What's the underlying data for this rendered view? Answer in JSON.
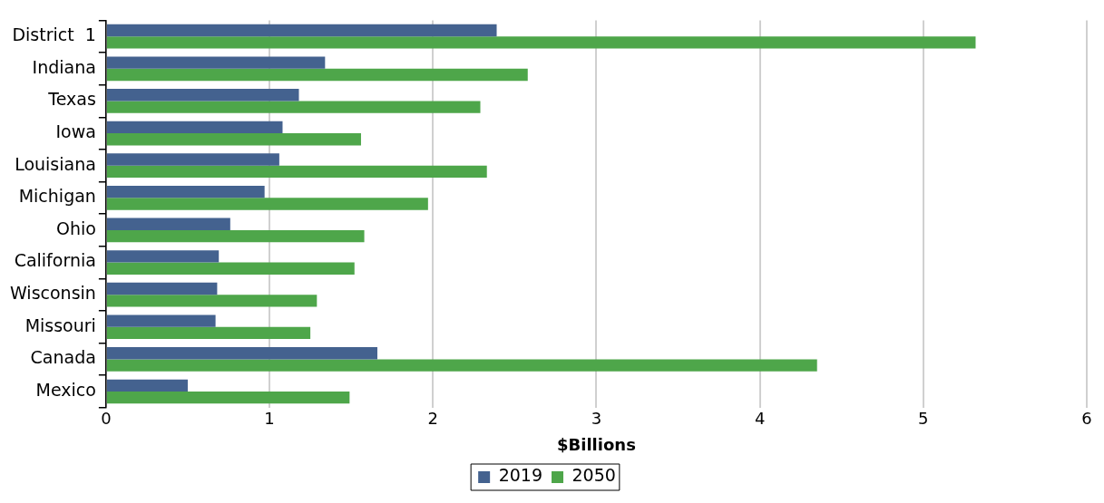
{
  "chart_data": {
    "type": "bar",
    "orientation": "horizontal",
    "categories": [
      "District  1",
      "Indiana",
      "Texas",
      "Iowa",
      "Louisiana",
      "Michigan",
      "Ohio",
      "California",
      "Wisconsin",
      "Missouri",
      "Canada",
      "Mexico"
    ],
    "series": [
      {
        "name": "2019",
        "color": "#44628f",
        "values": [
          2.39,
          1.34,
          1.18,
          1.08,
          1.06,
          0.97,
          0.76,
          0.69,
          0.68,
          0.67,
          1.66,
          0.5
        ]
      },
      {
        "name": "2050",
        "color": "#4ea64a",
        "values": [
          5.32,
          2.58,
          2.29,
          1.56,
          2.33,
          1.97,
          1.58,
          1.52,
          1.29,
          1.25,
          4.35,
          1.49
        ]
      }
    ],
    "xlabel": "$Billions",
    "xlim": [
      0,
      6
    ],
    "xticks": [
      0,
      1,
      2,
      3,
      4,
      5,
      6
    ],
    "grid": "x",
    "legend": "bottom"
  }
}
